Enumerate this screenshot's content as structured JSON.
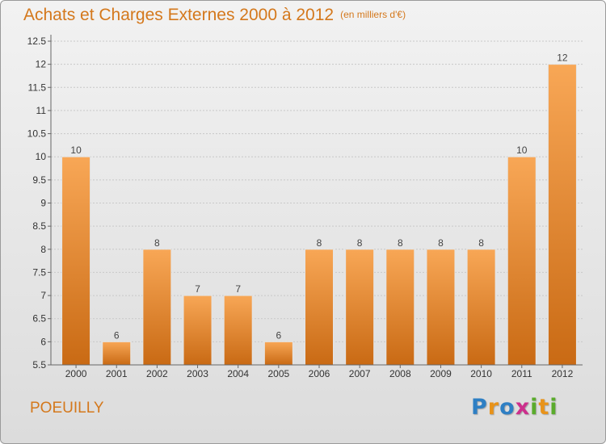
{
  "header": {
    "title": "Achats et Charges Externes 2000 à 2012",
    "unit": "(en milliers d'€)"
  },
  "footer": {
    "commune": "POEUILLY",
    "logo": [
      "P",
      "r",
      "o",
      "x",
      "i",
      "t",
      "i"
    ],
    "logo_colors": [
      "#2e7fc4",
      "#e8931a",
      "#2e7fc4",
      "#cc2f8c",
      "#5aab2c",
      "#e8931a",
      "#5aab2c"
    ]
  },
  "colors": {
    "bar_light": "#f8a756",
    "bar_dark": "#c96a14",
    "grid": "#c8c8c8",
    "axis": "#666666"
  },
  "chart_data": {
    "type": "bar",
    "categories": [
      "2000",
      "2001",
      "2002",
      "2003",
      "2004",
      "2005",
      "2006",
      "2007",
      "2008",
      "2009",
      "2010",
      "2011",
      "2012"
    ],
    "values": [
      10,
      6,
      8,
      7,
      7,
      6,
      8,
      8,
      8,
      8,
      8,
      10,
      12
    ],
    "value_labels": [
      "10",
      "6",
      "8",
      "7",
      "7",
      "6",
      "8",
      "8",
      "8",
      "8",
      "8",
      "10",
      "12"
    ],
    "y_ticks": [
      "5.5",
      "6",
      "6.5",
      "7",
      "7.5",
      "8",
      "8.5",
      "9",
      "9.5",
      "10",
      "10.5",
      "11",
      "11.5",
      "12",
      "12.5"
    ],
    "ylim": [
      5.5,
      12.5
    ],
    "grid": true
  }
}
